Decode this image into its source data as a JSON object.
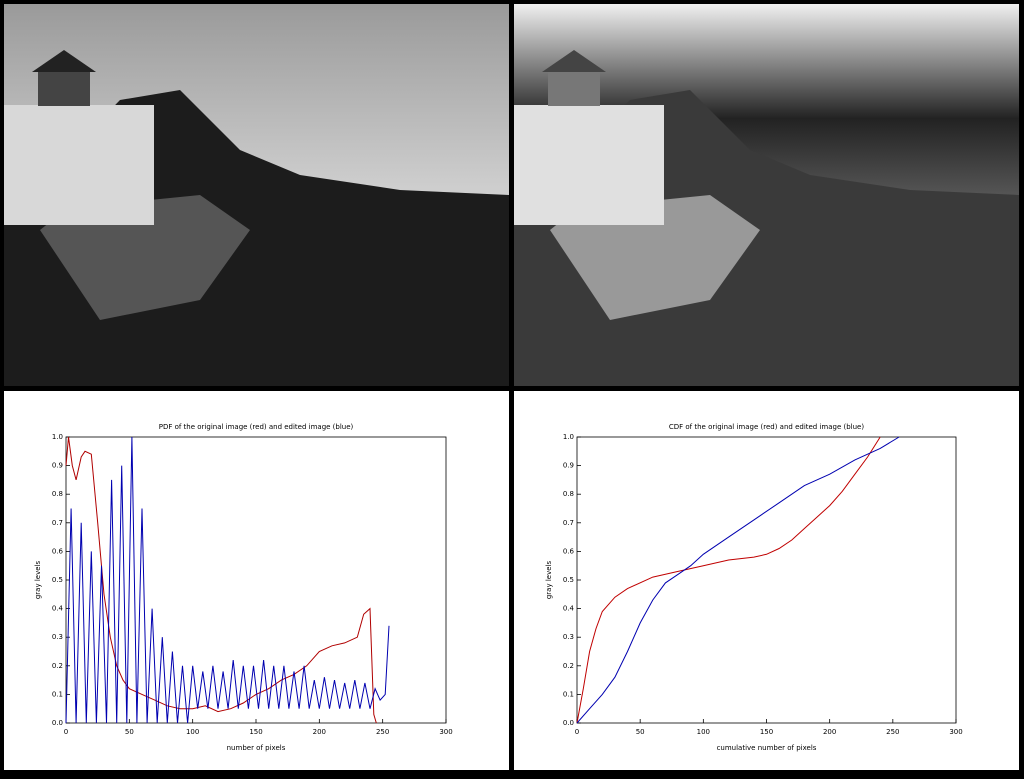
{
  "chart_data": [
    {
      "type": "line",
      "title": "PDF of the original image (red) and edited image (blue)",
      "x_label": "number of pixels",
      "y_label": "gray levels",
      "xlim": [
        0,
        300
      ],
      "xticks": [
        0,
        50,
        100,
        150,
        200,
        250,
        300
      ],
      "ylim": [
        0,
        1
      ],
      "yticks": [
        {
          "value": 0,
          "label": "0.0"
        },
        0.1,
        0.2,
        0.3,
        0.4,
        0.5,
        0.6,
        0.7,
        0.8,
        0.9,
        {
          "value": 1,
          "label": "1.0"
        }
      ],
      "series": [
        {
          "name": "original image",
          "color": "#b00000",
          "x": [
            0,
            2,
            5,
            8,
            12,
            15,
            20,
            25,
            30,
            35,
            40,
            45,
            50,
            60,
            70,
            80,
            90,
            100,
            110,
            120,
            130,
            140,
            150,
            160,
            170,
            180,
            190,
            200,
            210,
            220,
            230,
            235,
            240,
            243,
            245
          ],
          "values": [
            0.9,
            1,
            0.9,
            0.85,
            0.93,
            0.95,
            0.94,
            0.7,
            0.45,
            0.3,
            0.2,
            0.15,
            0.12,
            0.1,
            0.08,
            0.06,
            0.05,
            0.05,
            0.06,
            0.04,
            0.05,
            0.07,
            0.1,
            0.12,
            0.15,
            0.17,
            0.2,
            0.25,
            0.27,
            0.28,
            0.3,
            0.38,
            0.4,
            0.03,
            0
          ]
        },
        {
          "name": "edited image",
          "color": "#0000b0",
          "x": [
            0,
            4,
            8,
            12,
            16,
            20,
            24,
            28,
            32,
            36,
            40,
            44,
            48,
            52,
            56,
            60,
            64,
            68,
            72,
            76,
            80,
            84,
            88,
            92,
            96,
            100,
            104,
            108,
            112,
            116,
            120,
            124,
            128,
            132,
            136,
            140,
            144,
            148,
            152,
            156,
            160,
            164,
            168,
            172,
            176,
            180,
            184,
            188,
            192,
            196,
            200,
            204,
            208,
            212,
            216,
            220,
            224,
            228,
            232,
            236,
            240,
            244,
            248,
            252,
            255
          ],
          "values": [
            0,
            0.75,
            0,
            0.7,
            0,
            0.6,
            0,
            0.55,
            0,
            0.85,
            0,
            0.9,
            0,
            1,
            0,
            0.75,
            0,
            0.4,
            0,
            0.3,
            0,
            0.25,
            0,
            0.2,
            0,
            0.2,
            0.05,
            0.18,
            0.05,
            0.2,
            0.05,
            0.18,
            0.05,
            0.22,
            0.05,
            0.2,
            0.05,
            0.2,
            0.05,
            0.22,
            0.05,
            0.2,
            0.05,
            0.2,
            0.05,
            0.18,
            0.05,
            0.2,
            0.05,
            0.15,
            0.05,
            0.16,
            0.05,
            0.15,
            0.05,
            0.14,
            0.05,
            0.15,
            0.05,
            0.14,
            0.05,
            0.12,
            0.08,
            0.1,
            0.34
          ]
        }
      ]
    },
    {
      "type": "line",
      "title": "CDF of the original image (red) and edited image (blue)",
      "x_label": "cumulative number of pixels",
      "y_label": "gray levels",
      "xlim": [
        0,
        300
      ],
      "xticks": [
        0,
        50,
        100,
        150,
        200,
        250,
        300
      ],
      "ylim": [
        0,
        1
      ],
      "yticks": [
        {
          "value": 0,
          "label": "0.0"
        },
        0.1,
        0.2,
        0.3,
        0.4,
        0.5,
        0.6,
        0.7,
        0.8,
        0.9,
        {
          "value": 1,
          "label": "1.0"
        }
      ],
      "series": [
        {
          "name": "original image",
          "color": "#c00000",
          "x": [
            0,
            5,
            10,
            15,
            20,
            30,
            40,
            60,
            80,
            100,
            120,
            140,
            150,
            160,
            170,
            180,
            190,
            200,
            210,
            220,
            230,
            240
          ],
          "values": [
            0,
            0.12,
            0.25,
            0.33,
            0.39,
            0.44,
            0.47,
            0.51,
            0.53,
            0.55,
            0.57,
            0.58,
            0.59,
            0.61,
            0.64,
            0.68,
            0.72,
            0.76,
            0.81,
            0.87,
            0.93,
            1
          ]
        },
        {
          "name": "edited image",
          "color": "#0000b0",
          "x": [
            0,
            10,
            20,
            30,
            40,
            50,
            60,
            70,
            80,
            90,
            100,
            120,
            140,
            160,
            180,
            200,
            220,
            240,
            255
          ],
          "values": [
            0,
            0.05,
            0.1,
            0.16,
            0.25,
            0.35,
            0.43,
            0.49,
            0.52,
            0.55,
            0.59,
            0.65,
            0.71,
            0.77,
            0.83,
            0.87,
            0.92,
            0.96,
            1
          ]
        }
      ]
    }
  ]
}
